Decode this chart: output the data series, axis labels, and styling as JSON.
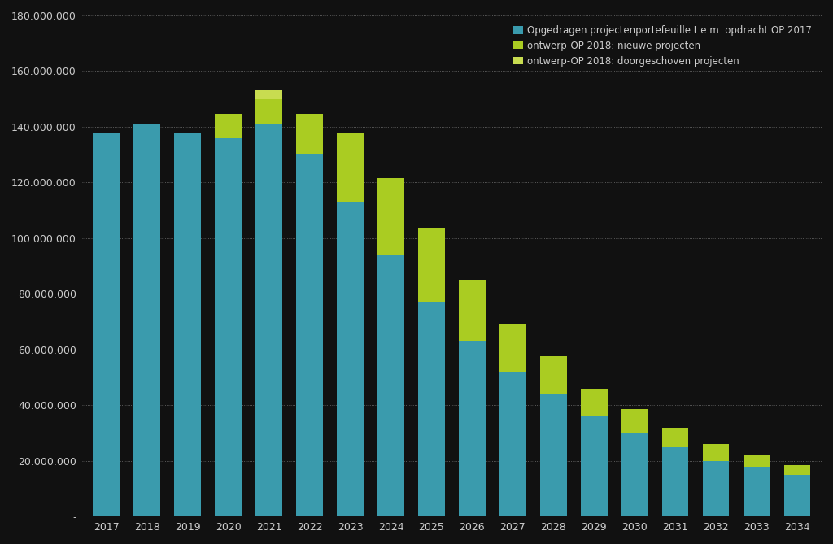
{
  "years": [
    2017,
    2018,
    2019,
    2020,
    2021,
    2022,
    2023,
    2024,
    2025,
    2026,
    2027,
    2028,
    2029,
    2030,
    2031,
    2032,
    2033,
    2034
  ],
  "blue_values": [
    138000000,
    141000000,
    138000000,
    136000000,
    141000000,
    130000000,
    113000000,
    94000000,
    77000000,
    63000000,
    52000000,
    44000000,
    36000000,
    30000000,
    25000000,
    20000000,
    18000000,
    15000000
  ],
  "yellow_green_values": [
    0,
    0,
    0,
    8500000,
    9000000,
    14500000,
    24500000,
    27500000,
    26500000,
    22000000,
    17000000,
    13500000,
    10000000,
    8500000,
    7000000,
    6000000,
    4000000,
    3500000
  ],
  "light_green_values": [
    0,
    0,
    0,
    0,
    3000000,
    0,
    0,
    0,
    0,
    0,
    0,
    0,
    0,
    0,
    0,
    0,
    0,
    0
  ],
  "blue_color": "#3A9BAD",
  "yellow_green_color": "#AACC22",
  "light_green_color": "#C8DC50",
  "bg_color": "#111111",
  "text_color": "#cccccc",
  "legend_labels": [
    "Opgedragen projectenportefeuille t.e.m. opdracht OP 2017",
    "ontwerp-OP 2018: nieuwe projecten",
    "ontwerp-OP 2018: doorgeschoven projecten"
  ],
  "ylim": [
    0,
    180000000
  ],
  "ytick_step": 20000000
}
